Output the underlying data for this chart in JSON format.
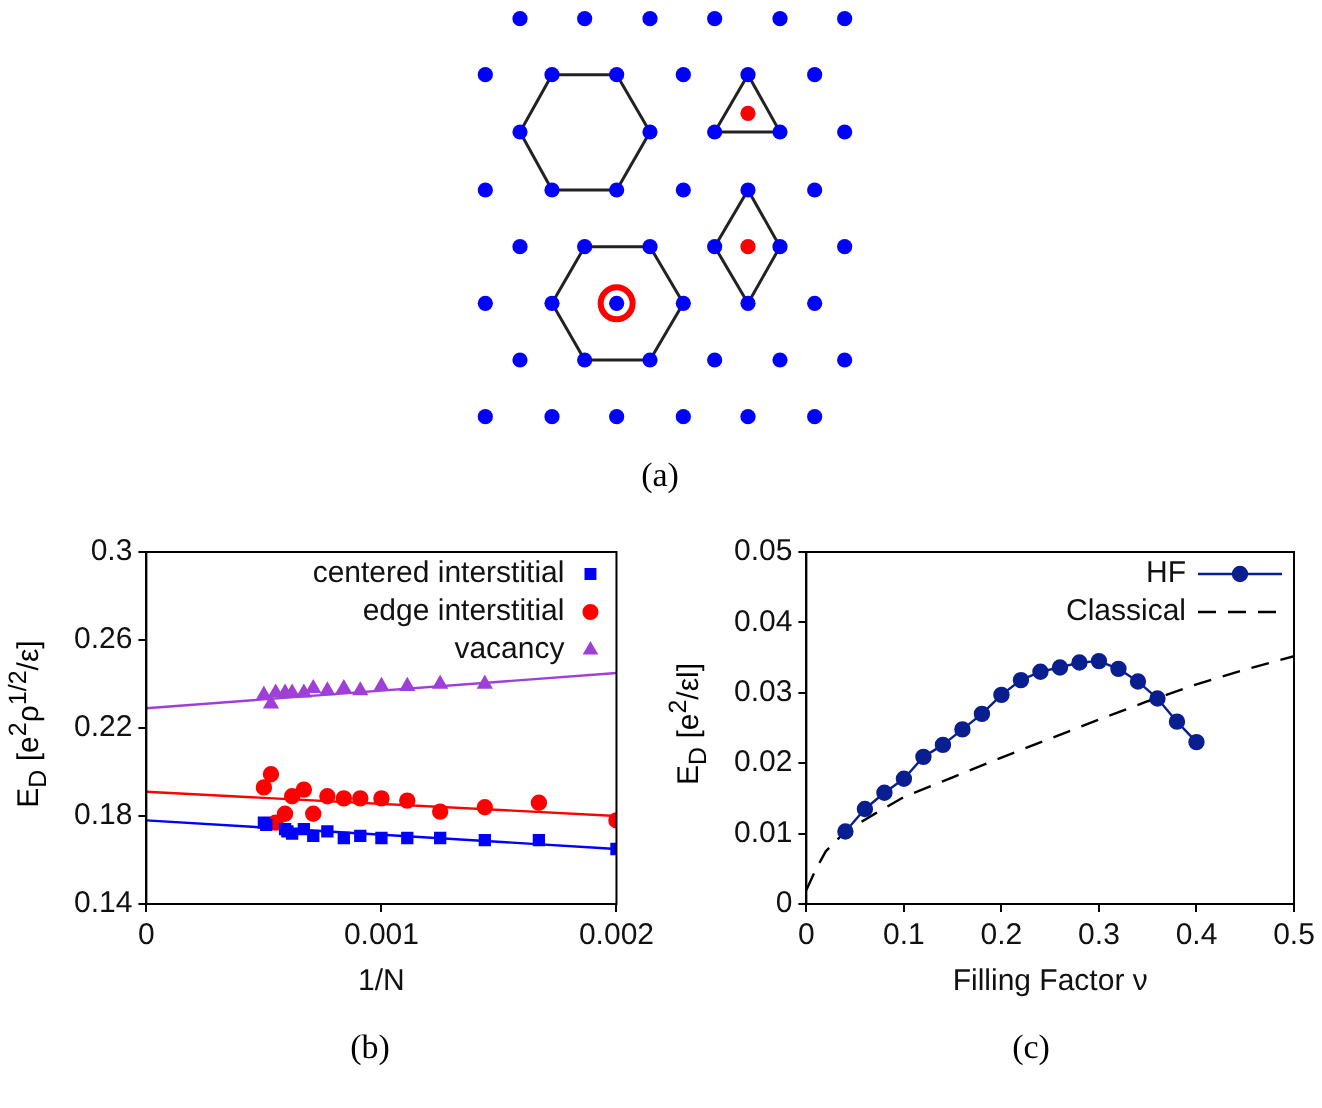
{
  "chart_data": [
    {
      "type": "other",
      "annotations": [
        "(a)"
      ]
    },
    {
      "type": "scatter",
      "xlabel": "1/N",
      "ylabel": "E$_{D}$ [e$^{2}$ρ$^{1/2}$/ε]",
      "annotations": [
        "(b)"
      ],
      "xlim": [
        0,
        0.002
      ],
      "xticks": [
        0,
        0.001,
        0.002
      ],
      "ylim": [
        0.14,
        0.3
      ],
      "yticks": [
        0.14,
        0.18,
        0.22,
        0.26,
        0.3
      ],
      "grid": false,
      "legend": "top right",
      "series": [
        {
          "name": "centered interstitial",
          "type": "scatter",
          "marker": "square",
          "color": "#0000ff",
          "x": [
            0.0005,
            0.00051,
            0.00059,
            0.0006,
            0.00062,
            0.00067,
            0.00071,
            0.00077,
            0.00084,
            0.00091,
            0.001,
            0.00111,
            0.00125,
            0.00144,
            0.00167,
            0.002
          ],
          "values": [
            0.177,
            0.176,
            0.174,
            0.173,
            0.172,
            0.174,
            0.171,
            0.173,
            0.17,
            0.171,
            0.17,
            0.17,
            0.17,
            0.169,
            0.169,
            0.165
          ]
        },
        {
          "name": "edge interstitial",
          "type": "scatter",
          "marker": "circle",
          "color": "#ff0000",
          "x": [
            0.0005,
            0.00053,
            0.00055,
            0.00059,
            0.00062,
            0.00067,
            0.00071,
            0.00077,
            0.00084,
            0.00091,
            0.001,
            0.00111,
            0.00125,
            0.00144,
            0.00167,
            0.002
          ],
          "values": [
            0.193,
            0.199,
            0.177,
            0.181,
            0.189,
            0.192,
            0.181,
            0.189,
            0.188,
            0.188,
            0.188,
            0.187,
            0.182,
            0.184,
            0.186,
            0.178
          ]
        },
        {
          "name": "vacancy",
          "type": "scatter",
          "marker": "triangle",
          "color": "#9f3fd8",
          "x": [
            0.0005,
            0.00053,
            0.00055,
            0.00059,
            0.00062,
            0.00067,
            0.00071,
            0.00077,
            0.00084,
            0.00091,
            0.001,
            0.00111,
            0.00125,
            0.00144
          ],
          "values": [
            0.235,
            0.231,
            0.236,
            0.236,
            0.236,
            0.236,
            0.238,
            0.237,
            0.238,
            0.237,
            0.239,
            0.239,
            0.24,
            0.24
          ]
        },
        {
          "type": "line",
          "marker": "none",
          "color": "#0000ff",
          "x": [
            0,
            0.002
          ],
          "values": [
            0.178,
            0.165
          ]
        },
        {
          "type": "line",
          "marker": "none",
          "color": "#ff0000",
          "x": [
            0,
            0.002
          ],
          "values": [
            0.191,
            0.18
          ]
        },
        {
          "type": "line",
          "marker": "none",
          "color": "#9f3fd8",
          "x": [
            0,
            0.002
          ],
          "values": [
            0.229,
            0.245
          ]
        }
      ]
    },
    {
      "type": "line",
      "xlabel": "Filling Factor ν",
      "ylabel": "E$_{D}$ [e$^{2}$/εl]",
      "annotations": [
        "(c)"
      ],
      "xlim": [
        0,
        0.5
      ],
      "xticks": [
        0,
        0.1,
        0.2,
        0.3,
        0.4,
        0.5
      ],
      "ylim": [
        0,
        0.05
      ],
      "yticks": [
        0,
        0.01,
        0.02,
        0.03,
        0.04,
        0.05
      ],
      "grid": false,
      "legend": "top right",
      "series": [
        {
          "name": "HF",
          "type": "line",
          "marker": "circle",
          "line_style": "solid",
          "color": "#0a1f8f",
          "x": [
            0.04,
            0.06,
            0.08,
            0.1,
            0.12,
            0.14,
            0.16,
            0.18,
            0.2,
            0.22,
            0.24,
            0.26,
            0.28,
            0.3,
            0.32,
            0.34,
            0.36,
            0.38,
            0.4
          ],
          "values": [
            0.0103,
            0.0135,
            0.0158,
            0.0178,
            0.0209,
            0.0226,
            0.0248,
            0.027,
            0.0297,
            0.0318,
            0.033,
            0.0336,
            0.0343,
            0.0345,
            0.0334,
            0.0316,
            0.0292,
            0.0259,
            0.023
          ]
        },
        {
          "name": "Classical",
          "type": "line",
          "marker": "none",
          "line_style": "dashed",
          "color": "#000000",
          "x": [
            0,
            0.01,
            0.02,
            0.04,
            0.07,
            0.1,
            0.15,
            0.2,
            0.25,
            0.3,
            0.35,
            0.4,
            0.45,
            0.5
          ],
          "values": [
            0.002,
            0.005,
            0.0075,
            0.0103,
            0.0128,
            0.0152,
            0.018,
            0.0208,
            0.0235,
            0.0262,
            0.0288,
            0.0312,
            0.0333,
            0.0352
          ]
        }
      ]
    }
  ]
}
